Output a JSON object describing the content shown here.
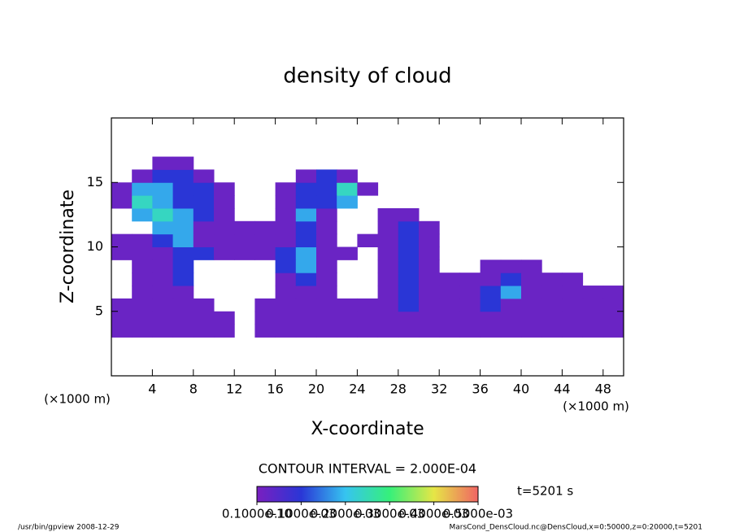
{
  "chart_data": {
    "type": "heatmap",
    "title": "density of cloud",
    "x_label": "X-coordinate",
    "y_label": "Z-coordinate",
    "annotations": [
      "(×1000 m)",
      "(×1000 m)",
      "CONTOUR INTERVAL = 2.000E-04",
      "t=5201 s"
    ],
    "footer_left": "/usr/bin/gpview  2008-12-29",
    "footer_right": "MarsCond_DensCloud.nc@DensCloud,x=0:50000,z=0:20000,t=5201",
    "xlim": [
      0,
      50
    ],
    "ylim": [
      0,
      20
    ],
    "xticks": [
      4,
      8,
      12,
      16,
      20,
      24,
      28,
      32,
      36,
      40,
      44,
      48
    ],
    "yticks": [
      5,
      10,
      15
    ],
    "x": [
      1,
      3,
      5,
      7,
      9,
      11,
      13,
      15,
      17,
      19,
      21,
      23,
      25,
      27,
      29,
      31,
      33,
      35,
      37,
      39,
      41,
      43,
      45,
      47,
      49
    ],
    "z": [
      3.5,
      4.5,
      5.5,
      6.5,
      7.5,
      8.5,
      9.5,
      10.5,
      11.5,
      12.5,
      13.5,
      14.5,
      15.5,
      16.5
    ],
    "values": [
      [
        2e-05,
        2e-05,
        2e-05,
        2e-05,
        2e-05,
        2e-05,
        null,
        2e-05,
        2e-05,
        2e-05,
        2e-05,
        2e-05,
        2e-05,
        2e-05,
        2e-05,
        2e-05,
        2e-05,
        2e-05,
        2e-05,
        2e-05,
        2e-05,
        2e-05,
        2e-05,
        2e-05,
        2e-05
      ],
      [
        2e-05,
        2e-05,
        2e-05,
        2e-05,
        2e-05,
        2e-05,
        null,
        2e-05,
        2e-05,
        2e-05,
        2e-05,
        2e-05,
        2e-05,
        2e-05,
        2e-05,
        2e-05,
        2e-05,
        2e-05,
        2e-05,
        2e-05,
        2e-05,
        2e-05,
        2e-05,
        2e-05,
        2e-05
      ],
      [
        2e-05,
        2e-05,
        2e-05,
        2e-05,
        2e-05,
        null,
        null,
        2e-05,
        2e-05,
        2e-05,
        2e-05,
        2e-05,
        2e-05,
        2e-05,
        0.0001,
        2e-05,
        2e-05,
        2e-05,
        0.0001,
        2e-05,
        2e-05,
        2e-05,
        2e-05,
        2e-05,
        2e-05
      ],
      [
        null,
        2e-05,
        2e-05,
        2e-05,
        null,
        null,
        null,
        null,
        2e-05,
        2e-05,
        2e-05,
        null,
        null,
        2e-05,
        0.0001,
        2e-05,
        2e-05,
        2e-05,
        0.0001,
        0.00018,
        2e-05,
        2e-05,
        2e-05,
        2e-05,
        2e-05
      ],
      [
        null,
        2e-05,
        2e-05,
        0.0001,
        null,
        null,
        null,
        null,
        2e-05,
        0.0001,
        2e-05,
        null,
        null,
        2e-05,
        0.0001,
        2e-05,
        2e-05,
        2e-05,
        2e-05,
        0.0001,
        2e-05,
        2e-05,
        2e-05,
        null,
        null
      ],
      [
        null,
        2e-05,
        2e-05,
        0.0001,
        null,
        null,
        null,
        null,
        0.0001,
        0.00018,
        2e-05,
        null,
        null,
        2e-05,
        0.0001,
        2e-05,
        null,
        null,
        2e-05,
        2e-05,
        2e-05,
        null,
        null,
        null,
        null
      ],
      [
        2e-05,
        2e-05,
        2e-05,
        0.0001,
        0.0001,
        2e-05,
        2e-05,
        2e-05,
        0.0001,
        0.00018,
        2e-05,
        2e-05,
        null,
        2e-05,
        0.0001,
        2e-05,
        null,
        null,
        null,
        null,
        null,
        null,
        null,
        null,
        null
      ],
      [
        2e-05,
        2e-05,
        0.0001,
        0.00018,
        2e-05,
        2e-05,
        2e-05,
        2e-05,
        2e-05,
        0.0001,
        2e-05,
        null,
        2e-05,
        2e-05,
        0.0001,
        2e-05,
        null,
        null,
        null,
        null,
        null,
        null,
        null,
        null,
        null
      ],
      [
        null,
        null,
        0.00018,
        0.00018,
        2e-05,
        2e-05,
        2e-05,
        2e-05,
        2e-05,
        0.0001,
        2e-05,
        null,
        null,
        2e-05,
        0.0001,
        2e-05,
        null,
        null,
        null,
        null,
        null,
        null,
        null,
        null,
        null
      ],
      [
        null,
        0.00018,
        0.00024,
        0.00018,
        0.0001,
        2e-05,
        null,
        null,
        2e-05,
        0.00018,
        2e-05,
        null,
        null,
        2e-05,
        2e-05,
        null,
        null,
        null,
        null,
        null,
        null,
        null,
        null,
        null,
        null
      ],
      [
        2e-05,
        0.00024,
        0.00018,
        0.0001,
        0.0001,
        2e-05,
        null,
        null,
        2e-05,
        0.0001,
        0.0001,
        0.00018,
        null,
        null,
        null,
        null,
        null,
        null,
        null,
        null,
        null,
        null,
        null,
        null,
        null
      ],
      [
        2e-05,
        0.00018,
        0.00018,
        0.0001,
        0.0001,
        2e-05,
        null,
        null,
        2e-05,
        0.0001,
        0.0001,
        0.00024,
        2e-05,
        null,
        null,
        null,
        null,
        null,
        null,
        null,
        null,
        null,
        null,
        null,
        null
      ],
      [
        null,
        2e-05,
        0.0001,
        0.0001,
        2e-05,
        null,
        null,
        null,
        null,
        2e-05,
        0.0001,
        2e-05,
        null,
        null,
        null,
        null,
        null,
        null,
        null,
        null,
        null,
        null,
        null,
        null,
        null
      ],
      [
        null,
        null,
        2e-05,
        2e-05,
        null,
        null,
        null,
        null,
        null,
        null,
        null,
        null,
        null,
        null,
        null,
        null,
        null,
        null,
        null,
        null,
        null,
        null,
        null,
        null,
        null
      ]
    ],
    "colorbar": {
      "lim": [
        1e-11,
        0.0005
      ],
      "colors": [
        "#7a1fc0",
        "#2a36d6",
        "#36c4f0",
        "#36f07a",
        "#e6e646",
        "#f06464"
      ],
      "ticks": [
        {
          "value": 1e-11,
          "label": "0.1000e-10"
        },
        {
          "value": 0.0001,
          "label": "0.1000e-03"
        },
        {
          "value": 0.0002,
          "label": "0.2000e-03"
        },
        {
          "value": 0.0003,
          "label": "0.3000e-03"
        },
        {
          "value": 0.0004,
          "label": "0.4000e-03"
        },
        {
          "value": 0.0005,
          "label": "0.5000e-03"
        }
      ]
    }
  }
}
